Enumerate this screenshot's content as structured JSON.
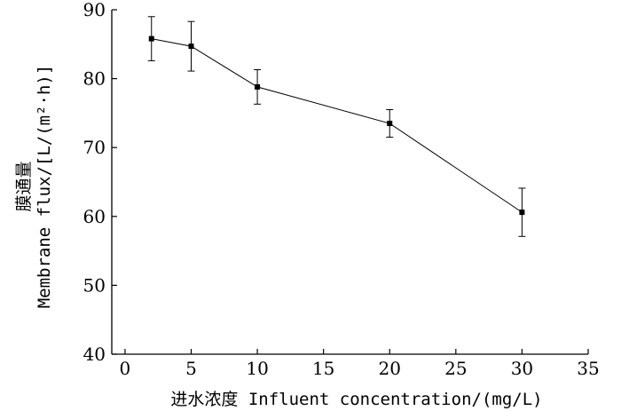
{
  "chart_data": {
    "type": "line",
    "title": "",
    "xlabel": "进水浓度 Influent concentration/(mg/L)",
    "ylabel_lines": [
      "膜通量",
      "Membrane flux/[L/(m²·h)]"
    ],
    "xlim": [
      -1,
      35
    ],
    "ylim": [
      40,
      90
    ],
    "x_ticks": [
      0,
      5,
      10,
      15,
      20,
      25,
      30,
      35
    ],
    "y_ticks": [
      40,
      50,
      60,
      70,
      80,
      90
    ],
    "grid": false,
    "legend": "none",
    "series": [
      {
        "x": [
          2,
          5,
          10,
          20,
          30
        ],
        "y": [
          85.8,
          84.7,
          78.8,
          73.5,
          60.6
        ],
        "error": [
          3.2,
          3.6,
          2.5,
          2.0,
          3.5
        ],
        "color": "#000000",
        "marker": "square"
      }
    ]
  }
}
